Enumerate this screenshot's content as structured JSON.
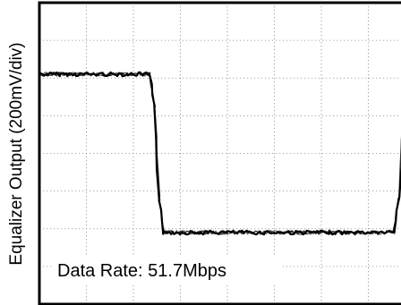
{
  "chart_data": {
    "type": "line",
    "title": "",
    "xlabel": "",
    "ylabel": "Equalizer Output (200mV/div)",
    "annotation": "Data Rate: 51.7Mbps",
    "grid": true,
    "divisions": {
      "x": 8,
      "y": 8
    },
    "xlim": [
      0,
      8
    ],
    "ylim": [
      -4,
      4
    ],
    "trace_color": "#000000",
    "series": [
      {
        "x": [
          0,
          2.35,
          2.45,
          2.55,
          2.65,
          7.55,
          7.65,
          7.75,
          7.85,
          8
        ],
        "values": [
          2.1,
          2.1,
          1.2,
          -1.2,
          -2.1,
          -2.1,
          -1.2,
          1.2,
          2.1,
          2.1
        ]
      }
    ]
  }
}
